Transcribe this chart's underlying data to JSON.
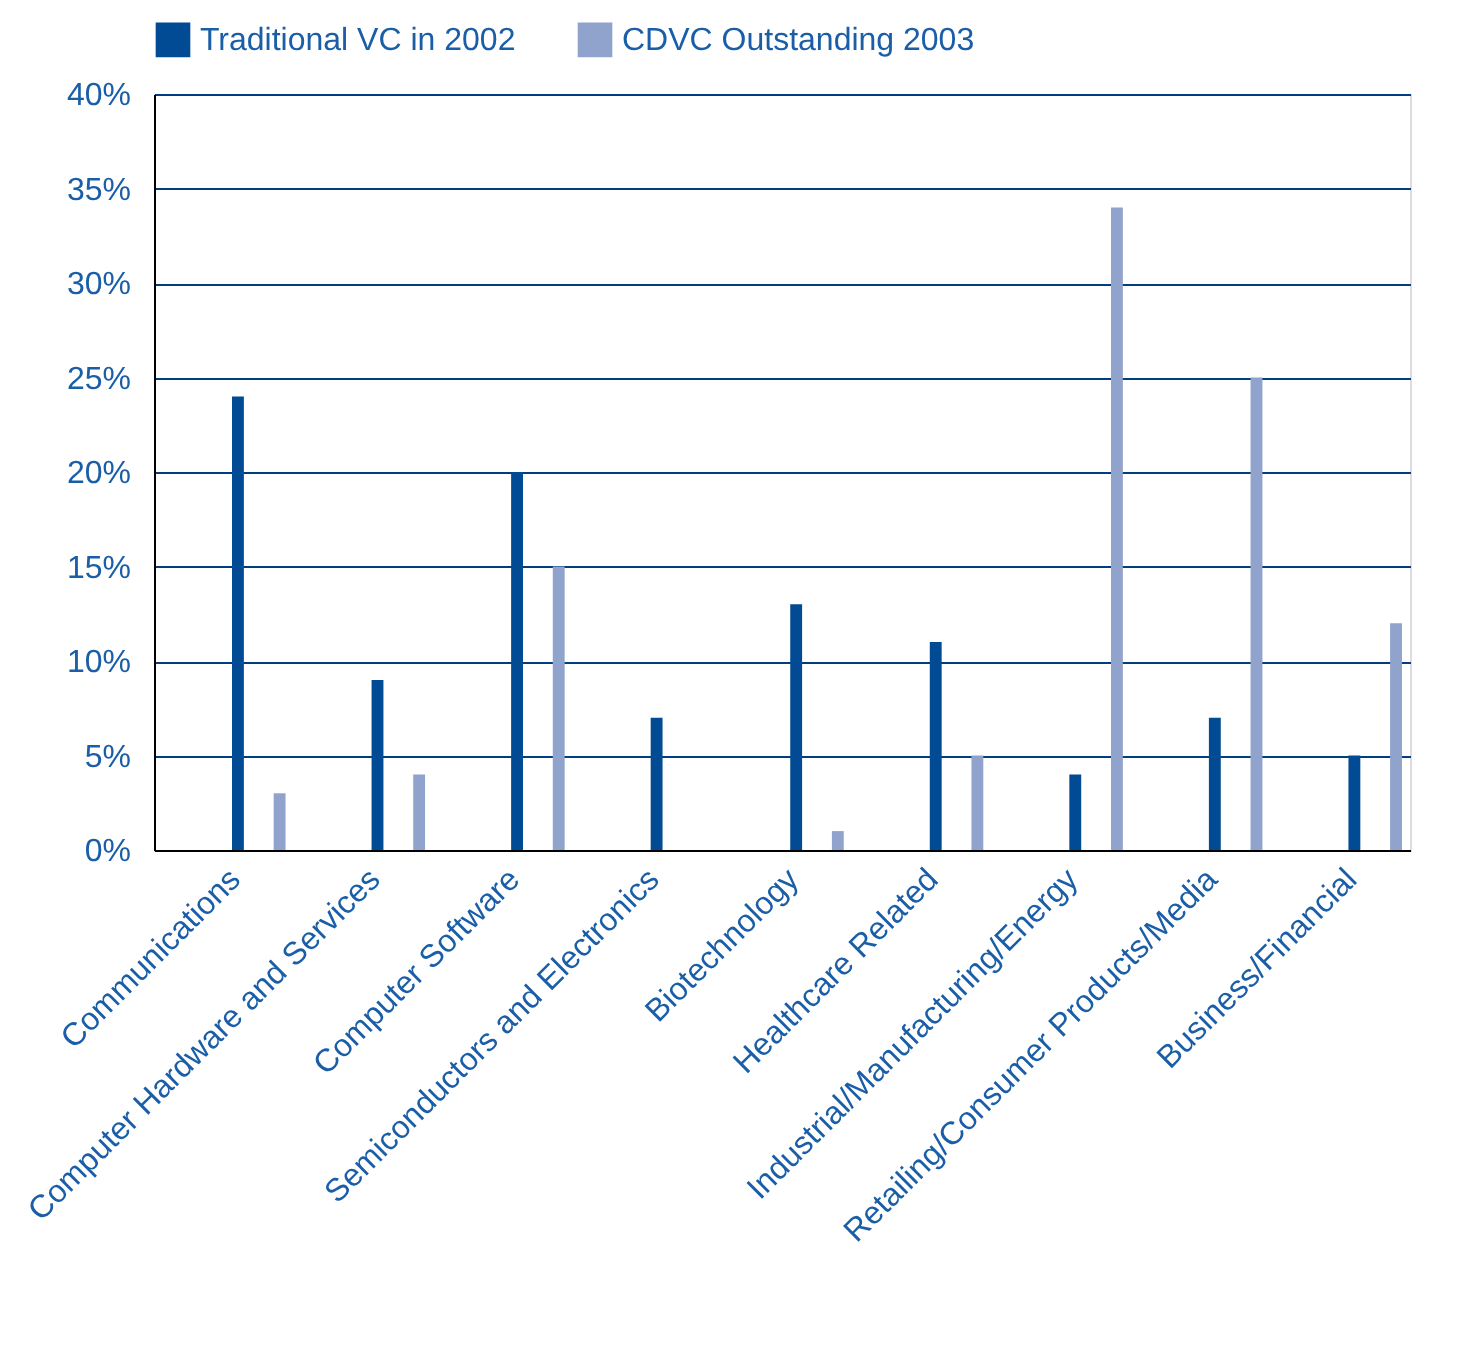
{
  "chart_data": {
    "type": "bar",
    "categories": [
      "Communications",
      "Computer Hardware and Services",
      "Computer Software",
      "Semiconductors and Electronics",
      "Biotechnology",
      "Healthcare Related",
      "Industrial/Manufacturing/Energy",
      "Retailing/Consumer Products/Media",
      "Business/Financial"
    ],
    "series": [
      {
        "name": "Traditional VC in 2002",
        "color": "#004b93",
        "values": [
          24,
          9,
          20,
          7,
          13,
          11,
          4,
          7,
          5
        ]
      },
      {
        "name": "CDVC Outstanding 2003",
        "color": "#8fa3cc",
        "values": [
          3,
          4,
          15,
          0,
          1,
          5,
          34,
          25,
          12
        ]
      }
    ],
    "ylim": [
      0,
      40
    ],
    "yticks": [
      {
        "value": 0,
        "label": "0%"
      },
      {
        "value": 5,
        "label": "5%"
      },
      {
        "value": 10,
        "label": "10%"
      },
      {
        "value": 15,
        "label": "15%"
      },
      {
        "value": 20,
        "label": "20%"
      },
      {
        "value": 25,
        "label": "25%"
      },
      {
        "value": 30,
        "label": "30%"
      },
      {
        "value": 35,
        "label": "35%"
      },
      {
        "value": 40,
        "label": "40%"
      }
    ],
    "grid": "y",
    "legend": "top left"
  }
}
